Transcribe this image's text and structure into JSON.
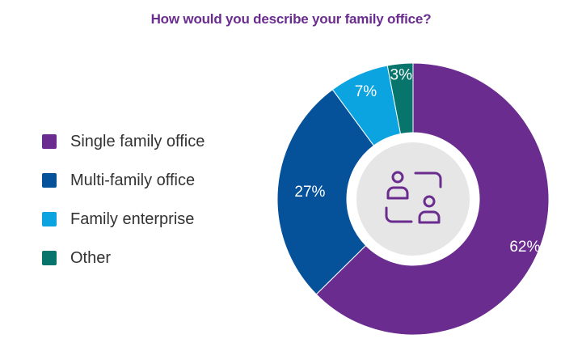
{
  "chart_data": {
    "type": "pie",
    "title": "How would you describe your family office?",
    "categories": [
      "Single family office",
      "Multi-family office",
      "Family enterprise",
      "Other"
    ],
    "values": [
      62,
      27,
      7,
      3
    ],
    "value_labels": [
      "62%",
      "27%",
      "7%",
      "3%"
    ],
    "colors": [
      "#6b2c8f",
      "#05529b",
      "#0ba4e0",
      "#07756b"
    ],
    "legend_placement": "left",
    "donut": true,
    "center_icon": "family-office-people-icon"
  }
}
